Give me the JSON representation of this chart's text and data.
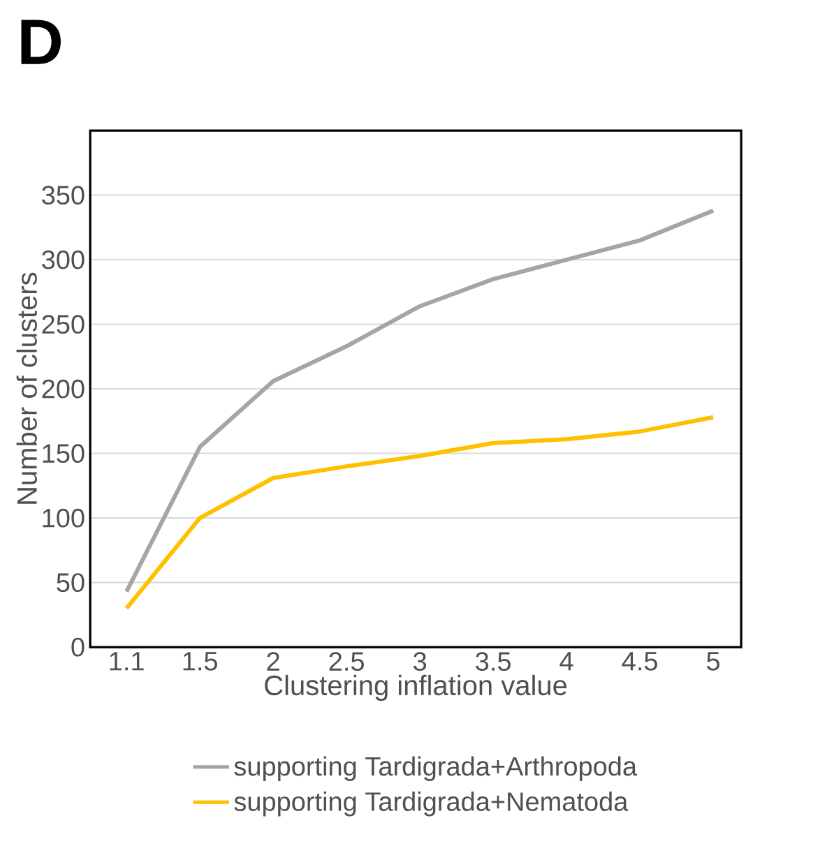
{
  "chart_data": {
    "type": "line",
    "title": "D",
    "xlabel": "Clustering inflation value",
    "ylabel": "Number of clusters",
    "categories": [
      "1.1",
      "1.5",
      "2",
      "2.5",
      "3",
      "3.5",
      "4",
      "4.5",
      "5"
    ],
    "series": [
      {
        "name": "supporting Tardigrada+Arthropoda",
        "color": "#a5a5a5",
        "values": [
          43,
          155,
          206,
          233,
          264,
          285,
          300,
          315,
          338
        ]
      },
      {
        "name": "supporting Tardigrada+Nematoda",
        "color": "#ffc000",
        "values": [
          30,
          100,
          131,
          140,
          148,
          158,
          161,
          167,
          178
        ]
      }
    ],
    "ylim": [
      0,
      400
    ],
    "yticks": [
      0,
      50,
      100,
      150,
      200,
      250,
      300,
      350
    ],
    "grid": "y",
    "legend": "bottom",
    "marker": "none",
    "line_style": "solid"
  }
}
